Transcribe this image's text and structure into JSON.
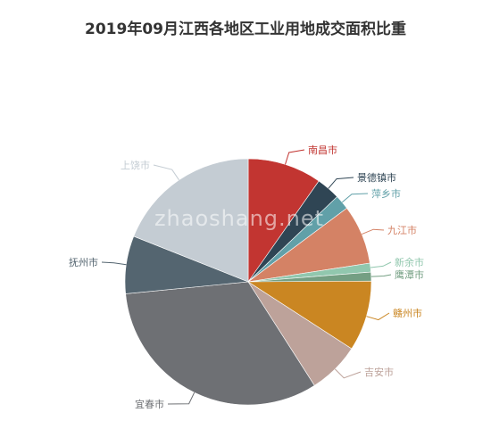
{
  "chart_data": {
    "type": "pie",
    "title": "2019年09月江西各地区工业用地成交面积比重",
    "categories": [
      "南昌市",
      "景德镇市",
      "萍乡市",
      "九江市",
      "新余市",
      "鹰潭市",
      "赣州市",
      "吉安市",
      "宜春市",
      "抚州市",
      "上饶市"
    ],
    "values": [
      10.0,
      3.2,
      2.0,
      8.0,
      1.2,
      1.2,
      9.5,
      7.0,
      33.4,
      7.8,
      19.5
    ],
    "colors": [
      "#c23531",
      "#2f4554",
      "#61a0a8",
      "#d48265",
      "#91c7ae",
      "#749f83",
      "#ca8622",
      "#bda29a",
      "#6e7074",
      "#546570",
      "#c4ccd3"
    ]
  },
  "watermark": "zhaoshang.net"
}
